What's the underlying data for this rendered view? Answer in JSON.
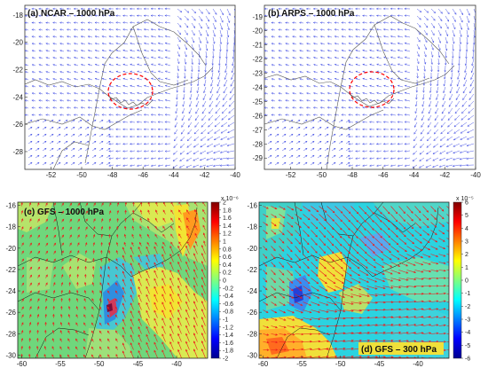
{
  "figure": {
    "colors": {
      "wind_light": "#4a56e6",
      "wind_strong": "#ee1c1c",
      "boundary": "#555555",
      "boundary_dark": "#111111",
      "highlight_circle": "#ff0000"
    }
  },
  "chart_data": [
    {
      "type": "vector_field_map",
      "title": "(a) NCAR – 1000 hPa",
      "x_ticks": [
        "-52",
        "-50",
        "-48",
        "-46",
        "-44",
        "-42",
        "-40"
      ],
      "y_ticks": [
        "-18",
        "-20",
        "-22",
        "-24",
        "-26",
        "-28"
      ],
      "xlim": [
        -53.7,
        -40
      ],
      "ylim": [
        -29.3,
        -17.3
      ],
      "highlight_circle": {
        "center_lon": -46.5,
        "center_lat": -23.6
      }
    },
    {
      "type": "vector_field_map",
      "title": "(b) ARPS – 1000 hPa",
      "x_ticks": [
        "-52",
        "-50",
        "-48",
        "-46",
        "-44",
        "-42",
        "-40"
      ],
      "y_ticks": [
        "-19",
        "-20",
        "-21",
        "-22",
        "-23",
        "-24",
        "-25",
        "-26",
        "-27",
        "-28",
        "-29"
      ],
      "xlim": [
        -53.7,
        -40
      ],
      "ylim": [
        -29.8,
        -18.2
      ],
      "highlight_circle": {
        "center_lon": -46.5,
        "center_lat": -23.6
      }
    },
    {
      "type": "heatmap_vector_map",
      "title": "(c) GFS – 1000 hPa",
      "x_ticks": [
        "-60",
        "-55",
        "-50",
        "-45",
        "-40"
      ],
      "y_ticks": [
        "-16",
        "-18",
        "-20",
        "-22",
        "-24",
        "-26",
        "-28",
        "-30"
      ],
      "xlim": [
        -60.5,
        -36
      ],
      "ylim": [
        -30.3,
        -15.7
      ],
      "colorbar": {
        "exponent_label": "x 10⁻⁶",
        "ticks": [
          "2",
          "1.8",
          "1.6",
          "1.4",
          "1.2",
          "1",
          "0.8",
          "0.6",
          "0.4",
          "0.2",
          "0",
          "-0.2",
          "-0.4",
          "-0.6",
          "-0.8",
          "-1",
          "-1.2",
          "-1.4",
          "-1.6",
          "-1.8",
          "-2"
        ],
        "range": [
          -2,
          2
        ]
      }
    },
    {
      "type": "heatmap_vector_map",
      "title": "(d) GFS – 300 hPa",
      "x_ticks": [
        "-60",
        "-55",
        "-50",
        "-45",
        "-40"
      ],
      "y_ticks": [
        "-16",
        "-18",
        "-20",
        "-22",
        "-24",
        "-26",
        "-28",
        "-30"
      ],
      "xlim": [
        -60.5,
        -36
      ],
      "ylim": [
        -30.3,
        -15.7
      ],
      "colorbar": {
        "exponent_label": "x 10⁻⁵",
        "ticks": [
          "6",
          "5",
          "4",
          "3",
          "2",
          "1",
          "0",
          "-1",
          "-2",
          "-3",
          "-4",
          "-5",
          "-6"
        ],
        "range": [
          -6,
          6
        ]
      }
    }
  ]
}
